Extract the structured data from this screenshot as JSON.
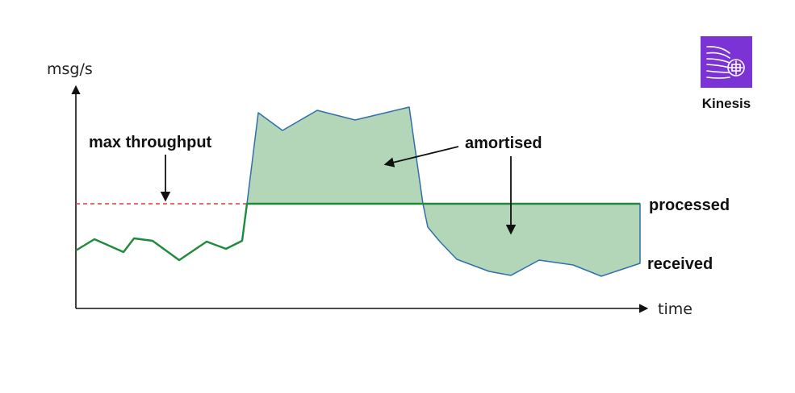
{
  "axes": {
    "y_label": "msg/s",
    "x_label": "time"
  },
  "annotations": {
    "max_throughput": "max throughput",
    "amortised": "amortised",
    "processed": "processed",
    "received": "received"
  },
  "logo": {
    "name": "Kinesis",
    "icon": "kinesis-icon",
    "color": "#7b33d6"
  },
  "colors": {
    "received_line": "#1f8a3a",
    "fill": "#b4d6b8",
    "area_outline": "#2f6fad",
    "threshold_line": "#d93a3a"
  }
}
